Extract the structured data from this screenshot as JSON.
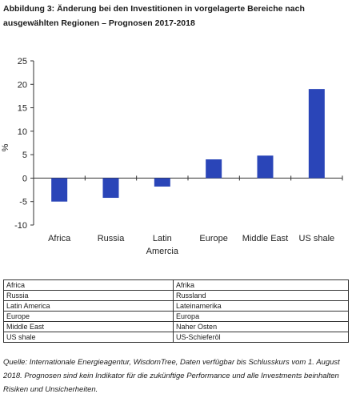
{
  "title": "Abbildung 3: Änderung bei den Investitionen in vorgelagerte Bereiche nach ausgewählten Regionen – Prognosen 2017-2018",
  "chart_data": {
    "type": "bar",
    "categories": [
      "Africa",
      "Russia",
      "Latin Amercia",
      "Europe",
      "Middle East",
      "US shale"
    ],
    "values": [
      -5,
      -4.2,
      -1.8,
      4,
      4.8,
      19
    ],
    "title": "",
    "xlabel": "",
    "ylabel": "%",
    "ylim": [
      -10,
      25
    ],
    "yticks": [
      25,
      20,
      15,
      10,
      5,
      0,
      -5,
      -10
    ],
    "grid": false,
    "bar_color": "#2a45b8"
  },
  "translation_table": [
    {
      "en": "Africa",
      "de": "Afrika"
    },
    {
      "en": "Russia",
      "de": "Russland"
    },
    {
      "en": "Latin America",
      "de": "Lateinamerika"
    },
    {
      "en": "Europe",
      "de": "Europa"
    },
    {
      "en": "Middle East",
      "de": "Naher Osten"
    },
    {
      "en": "US shale",
      "de": "US-Schieferöl"
    }
  ],
  "source": "Quelle: Internationale Energieagentur, WisdomTree, Daten verfügbar bis Schlusskurs vom 1. August 2018. Prognosen sind kein Indikator für die zukünftige Performance und alle Investments beinhalten Risiken und Unsicherheiten."
}
